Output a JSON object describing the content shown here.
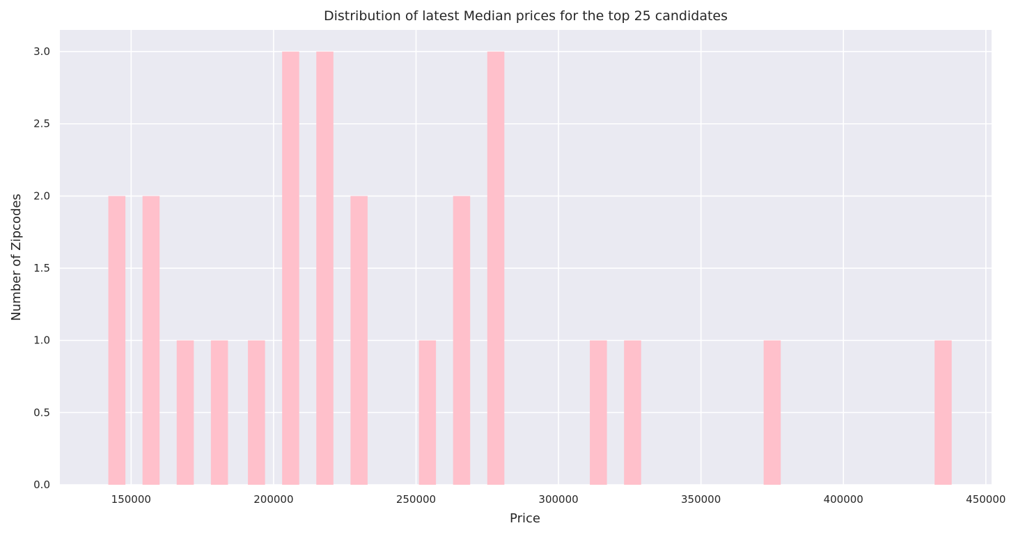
{
  "chart_data": {
    "type": "bar",
    "title": "Distribution of latest Median prices for the top 25 candidates",
    "xlabel": "Price",
    "ylabel": "Number of Zipcodes",
    "xlim": [
      125000,
      452000
    ],
    "ylim": [
      0,
      3.15
    ],
    "x_ticks": [
      150000,
      200000,
      250000,
      300000,
      350000,
      400000,
      450000
    ],
    "y_ticks": [
      0.0,
      0.5,
      1.0,
      1.5,
      2.0,
      2.5,
      3.0
    ],
    "x_tick_labels": [
      "150000",
      "200000",
      "250000",
      "300000",
      "350000",
      "400000",
      "450000"
    ],
    "y_tick_labels": [
      "0.0",
      "0.5",
      "1.0",
      "1.5",
      "2.0",
      "2.5",
      "3.0"
    ],
    "bar_width": 6000,
    "bars": [
      {
        "x": 145000,
        "value": 2
      },
      {
        "x": 157000,
        "value": 2
      },
      {
        "x": 169000,
        "value": 1
      },
      {
        "x": 181000,
        "value": 1
      },
      {
        "x": 194000,
        "value": 1
      },
      {
        "x": 206000,
        "value": 3
      },
      {
        "x": 218000,
        "value": 3
      },
      {
        "x": 230000,
        "value": 2
      },
      {
        "x": 254000,
        "value": 1
      },
      {
        "x": 266000,
        "value": 2
      },
      {
        "x": 278000,
        "value": 3
      },
      {
        "x": 314000,
        "value": 1
      },
      {
        "x": 326000,
        "value": 1
      },
      {
        "x": 375000,
        "value": 1
      },
      {
        "x": 435000,
        "value": 1
      }
    ],
    "grid": true,
    "colors": {
      "bar": "#ffc0cb",
      "background": "#eaeaf2",
      "grid": "#ffffff",
      "text": "#262626"
    }
  }
}
